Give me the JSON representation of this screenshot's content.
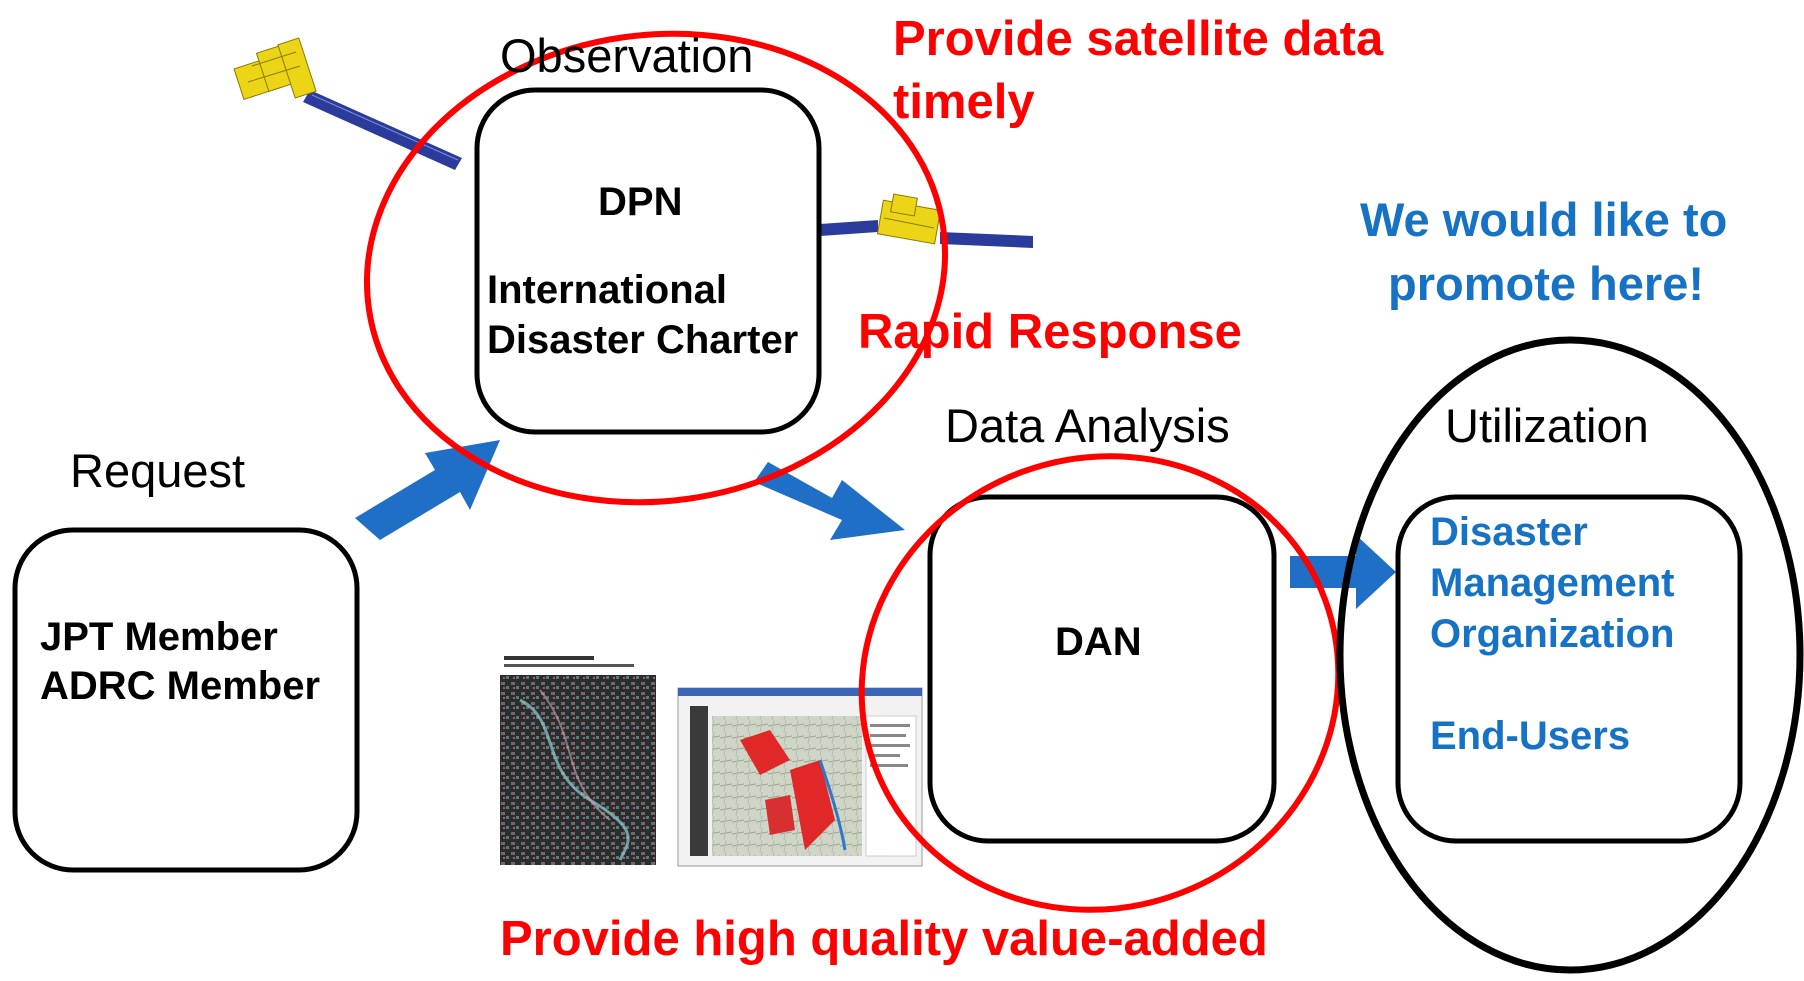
{
  "steps": {
    "request": {
      "heading": "Request",
      "member_line1": "JPT Member",
      "member_line2": "ADRC Member"
    },
    "observation": {
      "heading": "Observation",
      "network": "DPN",
      "charter_line1": "International",
      "charter_line2": "Disaster Charter"
    },
    "analysis": {
      "heading": "Data Analysis",
      "network": "DAN"
    },
    "utilization": {
      "heading": "Utilization",
      "org_line1": "Disaster",
      "org_line2": "Management",
      "org_line3": "Organization",
      "users": "End-Users"
    }
  },
  "callouts": {
    "satellite_line1": "Provide satellite data",
    "satellite_line2": "timely",
    "rapid_response": "Rapid Response",
    "promote_line1": "We would like to",
    "promote_line2": "promote here!",
    "value_added": "Provide high quality value-added"
  },
  "colors": {
    "highlight_red": "#ff0000",
    "promote_blue": "#1672c4",
    "arrow_blue": "#1f6fc6",
    "satellite_gold": "#e8d21a",
    "solar_panel_blue": "#1f3f9e"
  },
  "illustrations": {
    "satellite_icons": [
      "satellite-icon",
      "satellite-icon"
    ],
    "map_thumbnails": [
      "sar-flood-map-thumbnail",
      "flood-analysis-screenshot-thumbnail"
    ]
  }
}
